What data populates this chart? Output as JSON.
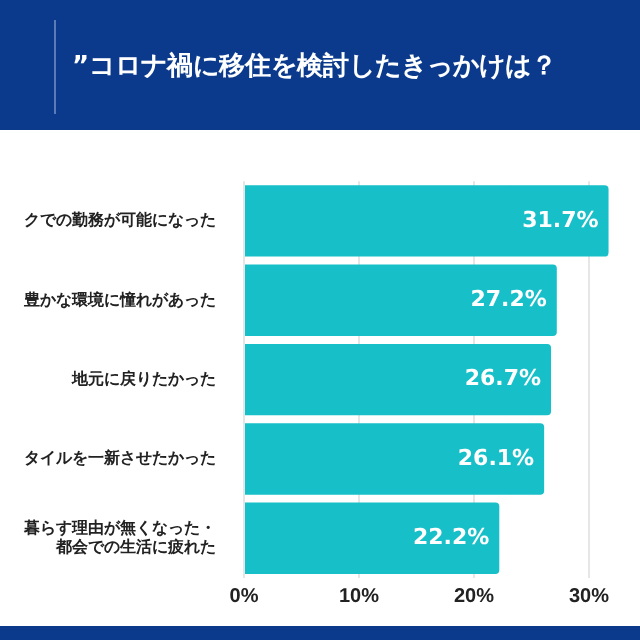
{
  "chart_data": {
    "type": "bar",
    "orientation": "horizontal",
    "title": "”コロナ禍に移住を検討したきっかけは？",
    "categories": [
      "クでの勤務が可能になった",
      "豊かな環境に憧れがあった",
      "地元に戻りたかった",
      "タイルを一新させたかった",
      "暮らす理由が無くなった・都会での生活に疲れた"
    ],
    "values": [
      31.7,
      27.2,
      26.7,
      26.1,
      22.2
    ],
    "color": "#17bfc8",
    "value_labels": [
      "31.7%",
      "27.2%",
      "26.7%",
      "26.1%",
      "22.2%"
    ],
    "xlim": [
      0,
      32
    ],
    "xticks": [
      {
        "value": 0,
        "label": "0%"
      },
      {
        "value": 10,
        "label": "10%"
      },
      {
        "value": 20,
        "label": "20%"
      },
      {
        "value": 30,
        "label": "30%"
      }
    ],
    "grid": "x",
    "legend": false
  }
}
